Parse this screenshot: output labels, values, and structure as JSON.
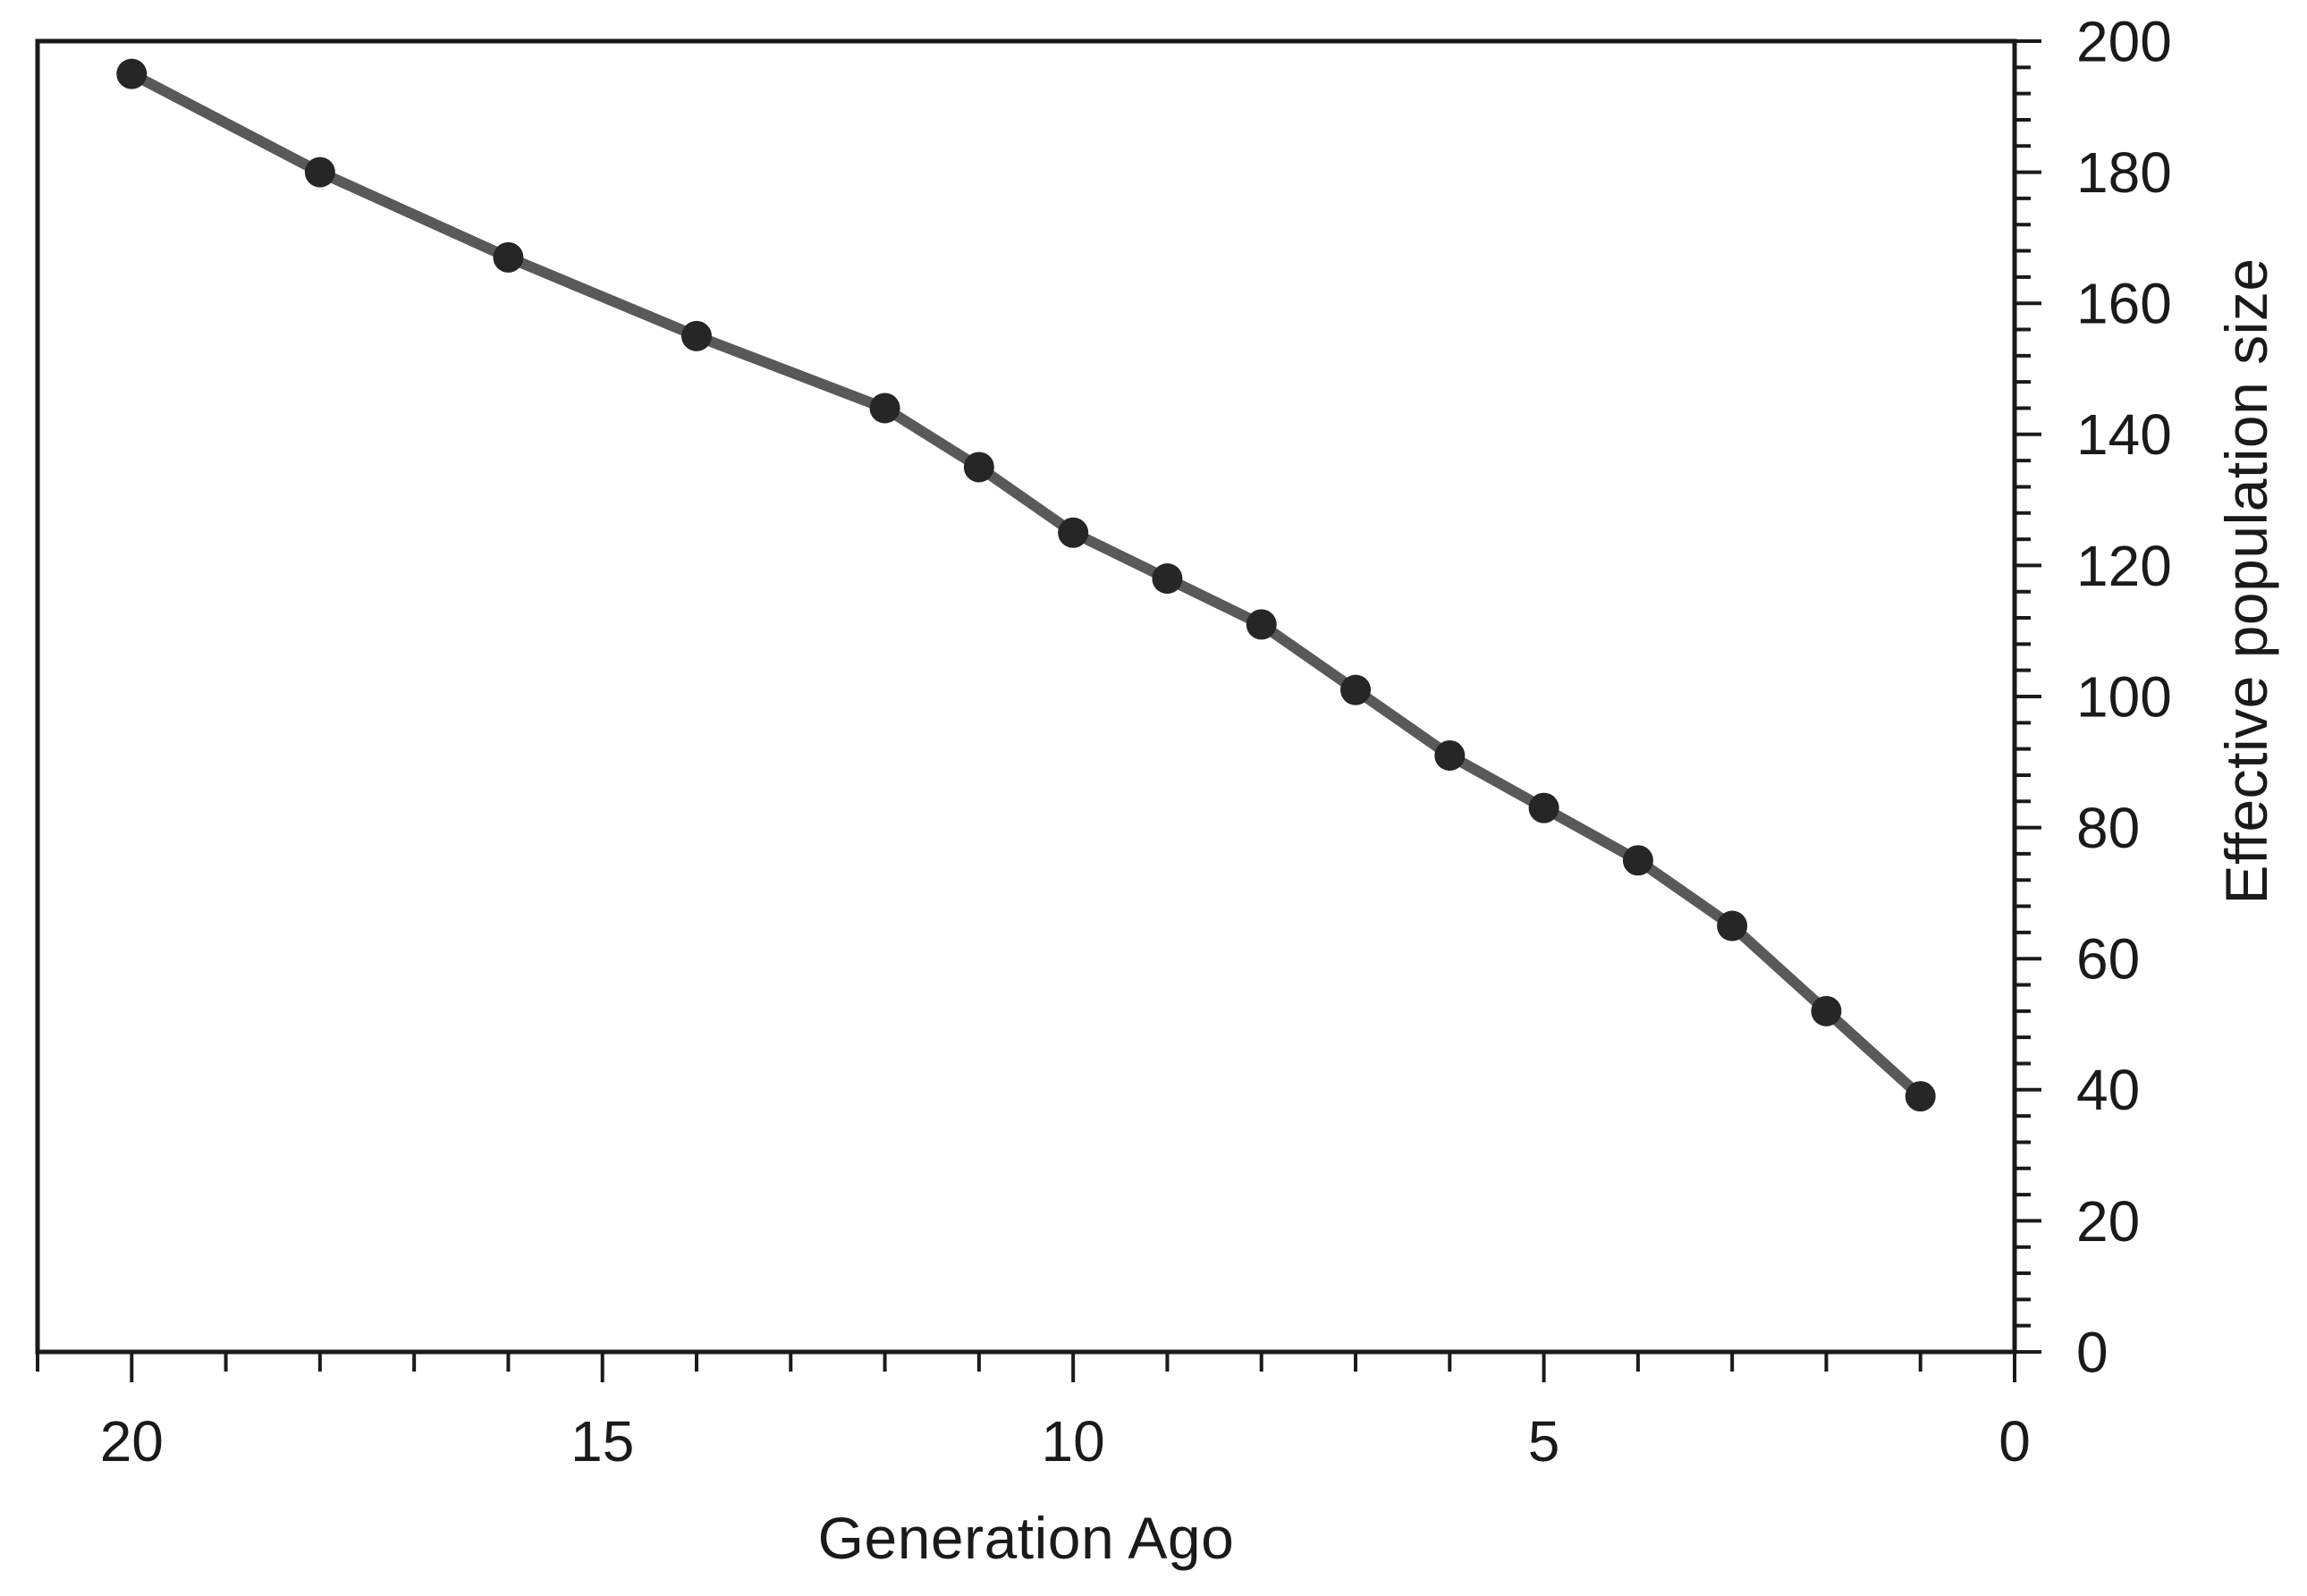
{
  "chart_data": {
    "type": "line",
    "title": "",
    "xlabel": "Generation Ago",
    "ylabel": "Effective population size",
    "series": [
      {
        "name": "Effective population size",
        "x": [
          20,
          18,
          16,
          14,
          12,
          11,
          10,
          9,
          8,
          7,
          6,
          5,
          4,
          3,
          2,
          1
        ],
        "y": [
          195,
          180,
          167,
          155,
          144,
          135,
          125,
          118,
          111,
          101,
          91,
          83,
          75,
          65,
          52,
          39
        ]
      }
    ],
    "xlim": [
      21,
      0
    ],
    "x_axis_reversed": true,
    "ylim": [
      0,
      200
    ],
    "x_ticks_major": [
      20,
      15,
      10,
      5,
      0
    ],
    "x_tick_labels": [
      "20",
      "15",
      "10",
      "5",
      "0"
    ],
    "x_minor_tick_step": 1,
    "y_ticks_major": [
      0,
      20,
      40,
      60,
      80,
      100,
      120,
      140,
      160,
      180,
      200
    ],
    "y_tick_labels": [
      "0",
      "20",
      "40",
      "60",
      "80",
      "100",
      "120",
      "140",
      "160",
      "180",
      "200"
    ],
    "y_minor_tick_step": 4,
    "y_axis_side": "right",
    "grid": false,
    "legend": false,
    "colors": {
      "line": "#595959",
      "marker": "#262626",
      "axis": "#1a1a1a",
      "text": "#1a1a1a",
      "background": "#ffffff"
    }
  }
}
